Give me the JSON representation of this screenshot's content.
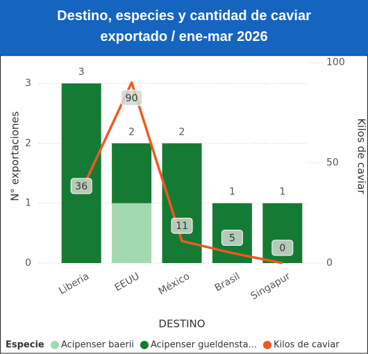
{
  "chart_data": {
    "type": "combo",
    "title": "Destino, especies y cantidad de caviar exportado / ene-mar 2026",
    "categories": [
      "Liberia",
      "EEUU",
      "México",
      "Brasil",
      "Singapur"
    ],
    "series": [
      {
        "name": "Acipenser baerii",
        "color": "#a3d9b1",
        "values": [
          null,
          1,
          null,
          null,
          null
        ]
      },
      {
        "name": "Acipenser gueldensta...",
        "color": "#157a34",
        "values": [
          3,
          1,
          2,
          1,
          1
        ]
      },
      {
        "name": "Kilos de caviar",
        "color": "#f0591c",
        "axis": "y2",
        "values": [
          36,
          90,
          11,
          5,
          0
        ]
      }
    ],
    "totals": [
      3,
      2,
      2,
      1,
      1
    ],
    "legend_title": "Especie",
    "x_label": "DESTINO",
    "y_label": "N° exportaciones",
    "y2_label": "Kilos de caviar",
    "ylim": [
      0,
      3.35
    ],
    "yticks": [
      0,
      1,
      2,
      3
    ],
    "y2lim": [
      0,
      100
    ],
    "y2ticks": [
      0,
      50,
      100
    ],
    "grid": true
  }
}
